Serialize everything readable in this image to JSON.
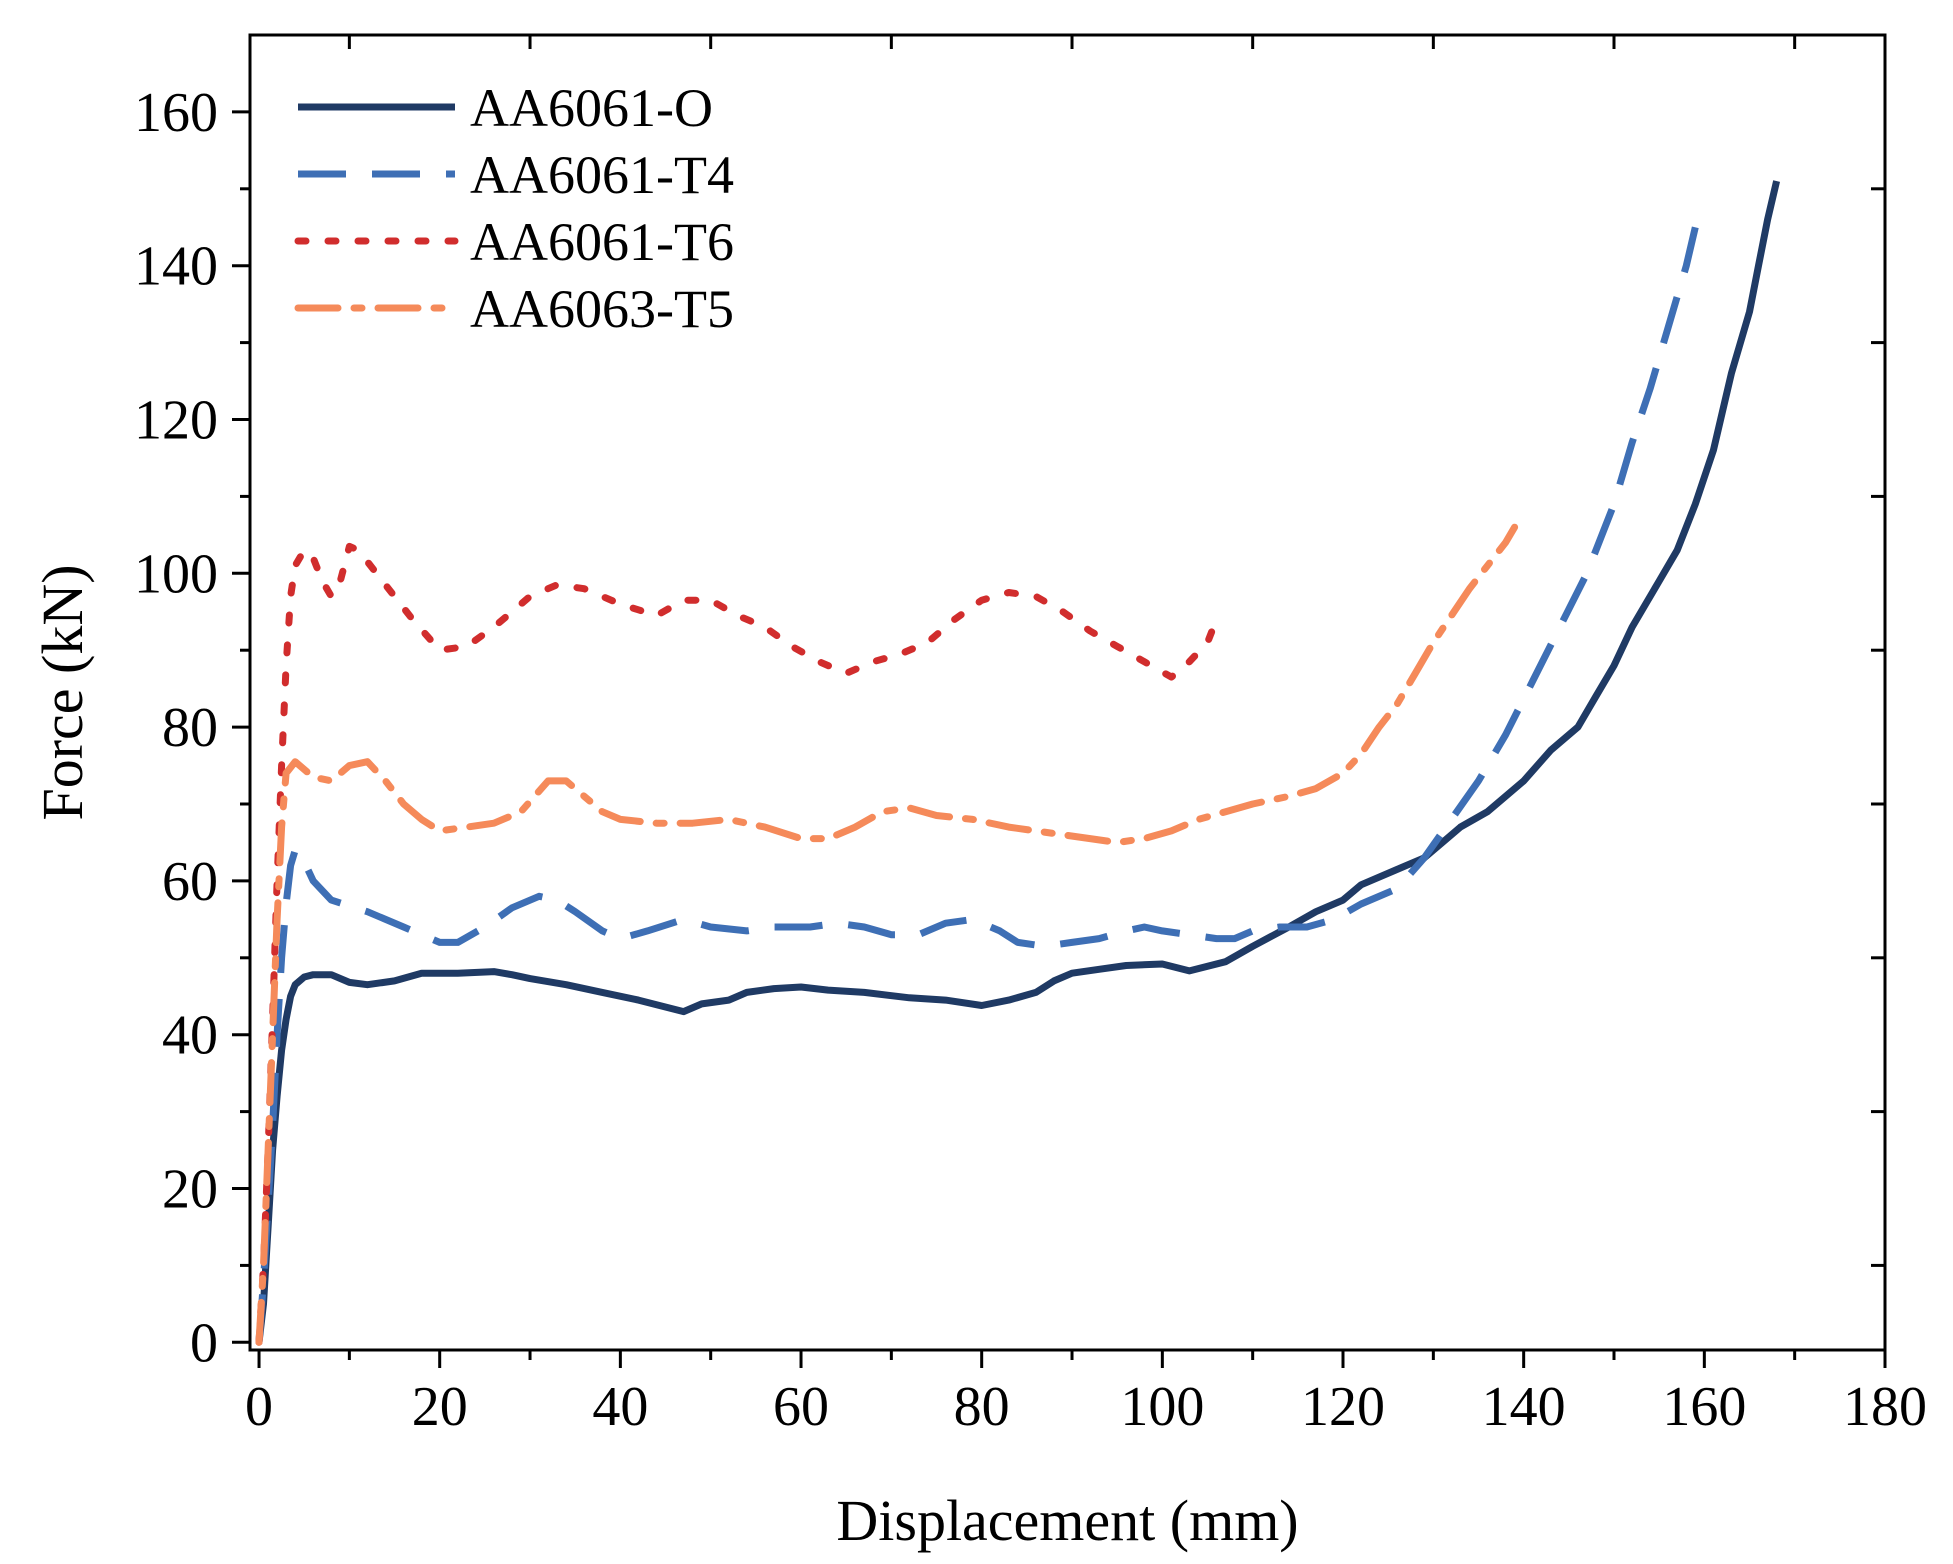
{
  "chart_data": {
    "type": "line",
    "title": "",
    "xlabel": "Displacement (mm)",
    "ylabel": "Force (kN)",
    "xlim": [
      -1,
      180
    ],
    "ylim": [
      -1,
      170
    ],
    "x_ticks": [
      0,
      20,
      40,
      60,
      80,
      100,
      120,
      140,
      160,
      180
    ],
    "y_ticks": [
      0,
      20,
      40,
      60,
      80,
      100,
      120,
      140,
      160
    ],
    "x_tick_labels": [
      "0",
      "20",
      "40",
      "60",
      "80",
      "100",
      "120",
      "140",
      "160",
      "180"
    ],
    "y_tick_labels": [
      "0",
      "20",
      "40",
      "60",
      "80",
      "100",
      "120",
      "140",
      "160"
    ],
    "grid": false,
    "legend_position": "top-left",
    "series": [
      {
        "name": "AA6061-O",
        "color": "#1f3a64",
        "style": "solid",
        "points": [
          [
            0,
            0
          ],
          [
            0.5,
            5
          ],
          [
            1,
            15
          ],
          [
            1.5,
            25
          ],
          [
            2,
            32
          ],
          [
            2.5,
            38
          ],
          [
            3,
            42
          ],
          [
            3.5,
            45
          ],
          [
            4,
            46.5
          ],
          [
            5,
            47.5
          ],
          [
            6,
            47.8
          ],
          [
            8,
            47.8
          ],
          [
            10,
            46.8
          ],
          [
            12,
            46.5
          ],
          [
            15,
            47
          ],
          [
            18,
            48
          ],
          [
            22,
            48
          ],
          [
            26,
            48.2
          ],
          [
            28,
            47.8
          ],
          [
            30,
            47.3
          ],
          [
            34,
            46.5
          ],
          [
            38,
            45.5
          ],
          [
            42,
            44.5
          ],
          [
            47,
            43
          ],
          [
            49,
            44
          ],
          [
            52,
            44.5
          ],
          [
            54,
            45.5
          ],
          [
            57,
            46
          ],
          [
            60,
            46.2
          ],
          [
            63,
            45.8
          ],
          [
            67,
            45.5
          ],
          [
            72,
            44.8
          ],
          [
            76,
            44.5
          ],
          [
            80,
            43.8
          ],
          [
            83,
            44.5
          ],
          [
            86,
            45.5
          ],
          [
            88,
            47
          ],
          [
            90,
            48
          ],
          [
            93,
            48.5
          ],
          [
            96,
            49
          ],
          [
            100,
            49.2
          ],
          [
            103,
            48.3
          ],
          [
            107,
            49.5
          ],
          [
            110,
            51.5
          ],
          [
            114,
            54
          ],
          [
            117,
            56
          ],
          [
            120,
            57.5
          ],
          [
            122,
            59.5
          ],
          [
            126,
            61.5
          ],
          [
            129,
            63
          ],
          [
            131,
            65
          ],
          [
            133,
            67
          ],
          [
            136,
            69
          ],
          [
            138,
            71
          ],
          [
            140,
            73
          ],
          [
            143,
            77
          ],
          [
            146,
            80
          ],
          [
            148,
            84
          ],
          [
            150,
            88
          ],
          [
            152,
            93
          ],
          [
            155,
            99
          ],
          [
            157,
            103
          ],
          [
            159,
            109
          ],
          [
            161,
            116
          ],
          [
            162,
            121
          ],
          [
            163,
            126
          ],
          [
            165,
            134
          ],
          [
            166,
            140
          ],
          [
            167,
            146
          ],
          [
            168,
            151
          ]
        ]
      },
      {
        "name": "AA6061-T4",
        "color": "#3e6fb5",
        "style": "dashed",
        "points": [
          [
            0,
            0
          ],
          [
            0.5,
            8
          ],
          [
            1,
            18
          ],
          [
            1.5,
            28
          ],
          [
            2,
            40
          ],
          [
            2.5,
            50
          ],
          [
            3,
            57
          ],
          [
            3.5,
            62
          ],
          [
            4,
            64
          ],
          [
            5,
            62.5
          ],
          [
            6,
            60
          ],
          [
            8,
            57.5
          ],
          [
            12,
            56
          ],
          [
            16,
            54
          ],
          [
            20,
            52
          ],
          [
            22,
            52
          ],
          [
            25,
            54
          ],
          [
            28,
            56.5
          ],
          [
            31,
            58
          ],
          [
            33,
            57.5
          ],
          [
            35,
            56
          ],
          [
            38,
            53.5
          ],
          [
            40,
            52.5
          ],
          [
            43,
            53.5
          ],
          [
            47,
            55
          ],
          [
            50,
            54
          ],
          [
            54,
            53.5
          ],
          [
            57,
            54
          ],
          [
            61,
            54
          ],
          [
            64,
            54.5
          ],
          [
            67,
            54
          ],
          [
            70,
            53
          ],
          [
            73,
            53
          ],
          [
            76,
            54.5
          ],
          [
            79,
            55
          ],
          [
            82,
            53.5
          ],
          [
            84,
            52
          ],
          [
            87,
            51.5
          ],
          [
            90,
            52
          ],
          [
            93,
            52.5
          ],
          [
            96,
            53.5
          ],
          [
            98,
            54
          ],
          [
            100,
            53.5
          ],
          [
            103,
            53
          ],
          [
            106,
            52.5
          ],
          [
            108,
            52.5
          ],
          [
            110,
            53.5
          ],
          [
            113,
            54
          ],
          [
            116,
            54
          ],
          [
            119,
            55
          ],
          [
            122,
            57
          ],
          [
            126,
            59
          ],
          [
            129,
            63
          ],
          [
            132,
            68
          ],
          [
            135,
            73
          ],
          [
            138,
            79
          ],
          [
            141,
            86
          ],
          [
            144,
            93
          ],
          [
            147,
            100
          ],
          [
            150,
            109
          ],
          [
            152,
            117
          ],
          [
            154,
            124
          ],
          [
            156,
            132
          ],
          [
            158,
            140
          ],
          [
            159,
            145
          ]
        ]
      },
      {
        "name": "AA6061-T6",
        "color": "#d12d2d",
        "style": "dotted",
        "points": [
          [
            0,
            0
          ],
          [
            0.5,
            10
          ],
          [
            1,
            25
          ],
          [
            1.5,
            42
          ],
          [
            2,
            60
          ],
          [
            2.5,
            75
          ],
          [
            3,
            88
          ],
          [
            3.5,
            97
          ],
          [
            4,
            101
          ],
          [
            5,
            103
          ],
          [
            6,
            102
          ],
          [
            7,
            99
          ],
          [
            8,
            97
          ],
          [
            9,
            99
          ],
          [
            10,
            103.5
          ],
          [
            11,
            103
          ],
          [
            13,
            100
          ],
          [
            15,
            97
          ],
          [
            17,
            94
          ],
          [
            20,
            90
          ],
          [
            23,
            90.5
          ],
          [
            26,
            93
          ],
          [
            30,
            97
          ],
          [
            33,
            98.5
          ],
          [
            36,
            98
          ],
          [
            40,
            96
          ],
          [
            44,
            94.5
          ],
          [
            47,
            96.5
          ],
          [
            50,
            96.5
          ],
          [
            53,
            94.5
          ],
          [
            56,
            93
          ],
          [
            59,
            90.5
          ],
          [
            62,
            88.5
          ],
          [
            65,
            87
          ],
          [
            68,
            88.5
          ],
          [
            71,
            89.5
          ],
          [
            74,
            91
          ],
          [
            77,
            94
          ],
          [
            80,
            96.5
          ],
          [
            83,
            97.5
          ],
          [
            86,
            97
          ],
          [
            89,
            95
          ],
          [
            92,
            92.5
          ],
          [
            95,
            90.5
          ],
          [
            98,
            88.5
          ],
          [
            101,
            86.5
          ],
          [
            103,
            88.5
          ],
          [
            105,
            91
          ],
          [
            106,
            94
          ]
        ]
      },
      {
        "name": "AA6063-T5",
        "color": "#f58a5a",
        "style": "dashdot",
        "points": [
          [
            0,
            0
          ],
          [
            0.5,
            10
          ],
          [
            1,
            25
          ],
          [
            1.5,
            40
          ],
          [
            2,
            55
          ],
          [
            2.5,
            67
          ],
          [
            3,
            74
          ],
          [
            4,
            75.5
          ],
          [
            6,
            73.5
          ],
          [
            8,
            73
          ],
          [
            10,
            75
          ],
          [
            12,
            75.5
          ],
          [
            14,
            73
          ],
          [
            16,
            70
          ],
          [
            18,
            68
          ],
          [
            20,
            66.5
          ],
          [
            23,
            67
          ],
          [
            26,
            67.5
          ],
          [
            29,
            69
          ],
          [
            32,
            73
          ],
          [
            34,
            73
          ],
          [
            36,
            71
          ],
          [
            38,
            69
          ],
          [
            40,
            68
          ],
          [
            44,
            67.5
          ],
          [
            48,
            67.5
          ],
          [
            52,
            68
          ],
          [
            56,
            67
          ],
          [
            60,
            65.5
          ],
          [
            63,
            65.5
          ],
          [
            66,
            67
          ],
          [
            69,
            69
          ],
          [
            72,
            69.5
          ],
          [
            75,
            68.5
          ],
          [
            79,
            68
          ],
          [
            83,
            67
          ],
          [
            86,
            66.5
          ],
          [
            89,
            66
          ],
          [
            92,
            65.5
          ],
          [
            95,
            65
          ],
          [
            98,
            65.5
          ],
          [
            101,
            66.5
          ],
          [
            104,
            68
          ],
          [
            107,
            69
          ],
          [
            110,
            70
          ],
          [
            114,
            71
          ],
          [
            117,
            72
          ],
          [
            120,
            74
          ],
          [
            122,
            76.5
          ],
          [
            124,
            80
          ],
          [
            126,
            83
          ],
          [
            128,
            87
          ],
          [
            130,
            91
          ],
          [
            132,
            94.5
          ],
          [
            134,
            98
          ],
          [
            136,
            101
          ],
          [
            138,
            104
          ],
          [
            139,
            106
          ]
        ]
      }
    ]
  }
}
